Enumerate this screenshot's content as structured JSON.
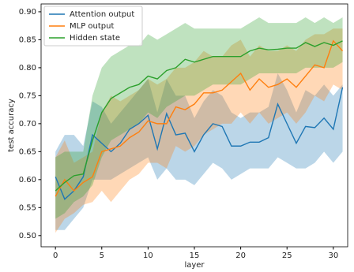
{
  "chart_data": {
    "type": "line",
    "x_label": "layer",
    "y_label": "test accuracy",
    "x": [
      0,
      1,
      2,
      3,
      4,
      5,
      6,
      7,
      8,
      9,
      10,
      11,
      12,
      13,
      14,
      15,
      16,
      17,
      18,
      19,
      20,
      21,
      22,
      23,
      24,
      25,
      26,
      27,
      28,
      29,
      30,
      31
    ],
    "series": [
      {
        "name": "Attention output",
        "color": "#1f77b4",
        "values": [
          0.605,
          0.565,
          0.58,
          0.605,
          0.68,
          0.665,
          0.65,
          0.665,
          0.69,
          0.7,
          0.715,
          0.655,
          0.718,
          0.68,
          0.683,
          0.65,
          0.68,
          0.7,
          0.695,
          0.66,
          0.66,
          0.667,
          0.667,
          0.675,
          0.735,
          0.7,
          0.665,
          0.695,
          0.693,
          0.71,
          0.69,
          0.765
        ],
        "lower": [
          0.51,
          0.51,
          0.53,
          0.55,
          0.6,
          0.6,
          0.6,
          0.61,
          0.62,
          0.63,
          0.64,
          0.6,
          0.62,
          0.6,
          0.6,
          0.59,
          0.61,
          0.63,
          0.62,
          0.6,
          0.61,
          0.62,
          0.62,
          0.62,
          0.64,
          0.63,
          0.62,
          0.62,
          0.63,
          0.65,
          0.63,
          0.65
        ],
        "upper": [
          0.65,
          0.68,
          0.68,
          0.66,
          0.74,
          0.73,
          0.7,
          0.72,
          0.74,
          0.76,
          0.78,
          0.72,
          0.78,
          0.75,
          0.75,
          0.71,
          0.74,
          0.76,
          0.75,
          0.72,
          0.71,
          0.72,
          0.72,
          0.73,
          0.79,
          0.76,
          0.72,
          0.76,
          0.75,
          0.77,
          0.75,
          0.77
        ]
      },
      {
        "name": "MLP output",
        "color": "#ff7f0e",
        "values": [
          0.57,
          0.6,
          0.58,
          0.595,
          0.605,
          0.65,
          0.655,
          0.66,
          0.675,
          0.685,
          0.705,
          0.7,
          0.7,
          0.73,
          0.725,
          0.735,
          0.755,
          0.755,
          0.76,
          0.775,
          0.79,
          0.76,
          0.78,
          0.765,
          0.77,
          0.78,
          0.765,
          0.785,
          0.805,
          0.8,
          0.848,
          0.83
        ],
        "lower": [
          0.505,
          0.53,
          0.54,
          0.555,
          0.56,
          0.58,
          0.56,
          0.58,
          0.6,
          0.61,
          0.63,
          0.63,
          0.62,
          0.66,
          0.65,
          0.66,
          0.68,
          0.69,
          0.7,
          0.7,
          0.72,
          0.7,
          0.72,
          0.7,
          0.71,
          0.72,
          0.7,
          0.72,
          0.75,
          0.74,
          0.77,
          0.76
        ],
        "upper": [
          0.64,
          0.67,
          0.63,
          0.64,
          0.65,
          0.72,
          0.75,
          0.74,
          0.75,
          0.76,
          0.78,
          0.77,
          0.78,
          0.8,
          0.8,
          0.81,
          0.83,
          0.82,
          0.82,
          0.84,
          0.85,
          0.82,
          0.84,
          0.83,
          0.83,
          0.84,
          0.83,
          0.85,
          0.86,
          0.86,
          0.87,
          0.87
        ]
      },
      {
        "name": "Hidden state",
        "color": "#2ca02c",
        "values": [
          0.58,
          0.595,
          0.607,
          0.61,
          0.67,
          0.72,
          0.745,
          0.755,
          0.765,
          0.77,
          0.785,
          0.78,
          0.795,
          0.8,
          0.815,
          0.81,
          0.815,
          0.82,
          0.82,
          0.82,
          0.82,
          0.83,
          0.835,
          0.832,
          0.833,
          0.835,
          0.835,
          0.845,
          0.838,
          0.845,
          0.84,
          0.848
        ],
        "lower": [
          0.53,
          0.54,
          0.56,
          0.57,
          0.59,
          0.64,
          0.67,
          0.68,
          0.69,
          0.7,
          0.72,
          0.71,
          0.73,
          0.74,
          0.75,
          0.75,
          0.76,
          0.77,
          0.77,
          0.77,
          0.77,
          0.78,
          0.79,
          0.79,
          0.79,
          0.79,
          0.79,
          0.8,
          0.8,
          0.8,
          0.8,
          0.81
        ],
        "upper": [
          0.64,
          0.65,
          0.65,
          0.65,
          0.75,
          0.8,
          0.82,
          0.83,
          0.84,
          0.84,
          0.86,
          0.85,
          0.86,
          0.87,
          0.88,
          0.87,
          0.87,
          0.87,
          0.87,
          0.87,
          0.87,
          0.88,
          0.89,
          0.88,
          0.88,
          0.88,
          0.88,
          0.89,
          0.88,
          0.89,
          0.88,
          0.89
        ]
      }
    ],
    "xlim": [
      -1.55,
      31.55
    ],
    "xticks": [
      0,
      5,
      10,
      15,
      20,
      25,
      30
    ],
    "ylim": [
      0.48,
      0.914
    ],
    "yticks": [
      {
        "value": 0.5,
        "label": "0.50"
      },
      0.55,
      {
        "value": 0.6,
        "label": "0.60"
      },
      0.65,
      {
        "value": 0.7,
        "label": "0.70"
      },
      0.75,
      {
        "value": 0.8,
        "label": "0.80"
      },
      0.85,
      {
        "value": 0.9,
        "label": "0.90"
      }
    ],
    "legend": "upper left",
    "band_opacity": 0.3
  }
}
